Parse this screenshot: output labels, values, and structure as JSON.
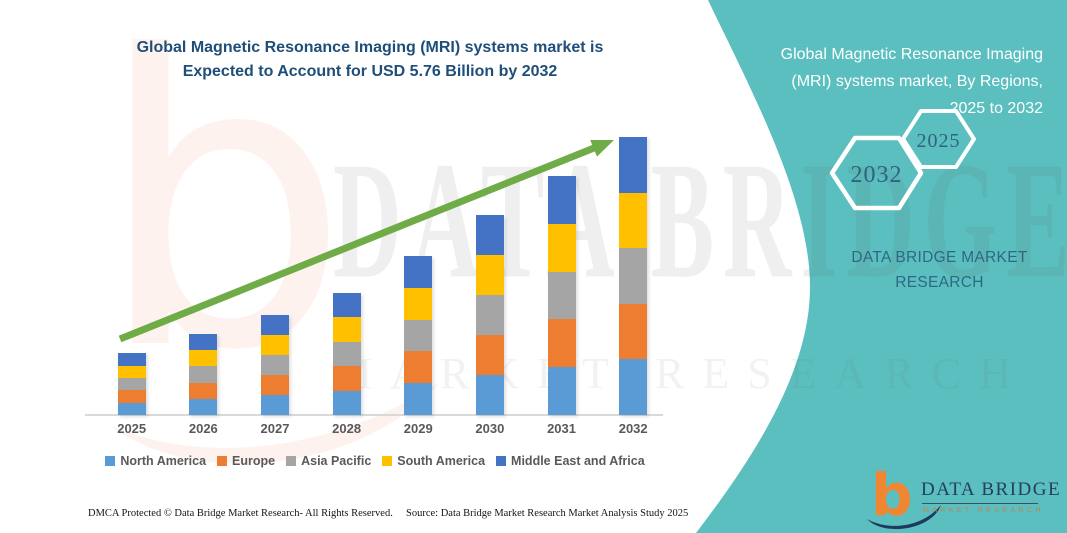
{
  "title": {
    "line1": "Global  Magnetic Resonance Imaging (MRI) systems market is",
    "line2": "Expected to Account for USD 5.76 Billion by 2032"
  },
  "chart_data": {
    "type": "bar",
    "stacked": true,
    "title": "Global Magnetic Resonance Imaging (MRI) systems market, 2025 to 2032",
    "unit": "USD Billion",
    "highlight_value": "USD 5.76 Billion by 2032",
    "categories": [
      "2025",
      "2026",
      "2027",
      "2028",
      "2029",
      "2030",
      "2031",
      "2032"
    ],
    "totals": [
      1.28,
      1.68,
      2.07,
      2.53,
      3.29,
      4.14,
      4.95,
      5.76
    ],
    "series": [
      {
        "name": "North America",
        "color": "#5B9BD5",
        "values": [
          0.256,
          0.336,
          0.414,
          0.506,
          0.658,
          0.828,
          0.99,
          1.152
        ]
      },
      {
        "name": "Europe",
        "color": "#ED7D31",
        "values": [
          0.256,
          0.336,
          0.414,
          0.506,
          0.658,
          0.828,
          0.99,
          1.152
        ]
      },
      {
        "name": "Asia Pacific",
        "color": "#A5A5A5",
        "values": [
          0.256,
          0.336,
          0.414,
          0.506,
          0.658,
          0.828,
          0.99,
          1.152
        ]
      },
      {
        "name": "South America",
        "color": "#FFC000",
        "values": [
          0.256,
          0.336,
          0.414,
          0.506,
          0.658,
          0.828,
          0.99,
          1.152
        ]
      },
      {
        "name": "Middle East and Africa",
        "color": "#4472C4",
        "values": [
          0.256,
          0.336,
          0.414,
          0.506,
          0.658,
          0.828,
          0.99,
          1.152
        ]
      }
    ],
    "legend_position": "bottom",
    "value_axis": "hidden",
    "gridlines": false,
    "annotation": "upward green trend arrow"
  },
  "side_panel": {
    "title_lines": [
      "Global  Magnetic Resonance Imaging",
      "(MRI) systems market, By Regions,",
      "2025 to 2032"
    ],
    "hexagon_back": "2032",
    "hexagon_front": "2025",
    "brand_text": "DATA BRIDGE MARKET RESEARCH"
  },
  "logo": {
    "glyph": "b",
    "name": "DATA BRIDGE",
    "tagline": "MARKET RESEARCH"
  },
  "watermark": {
    "glyph": "b",
    "line1": "DATA BRIDGE",
    "line2": "MARKET RESEARCH"
  },
  "footer": {
    "left": "DMCA Protected © Data Bridge Market Research-  All Rights Reserved.",
    "right": "Source: Data Bridge Market Research  Market Analysis Study 2025"
  },
  "colors": {
    "panel_teal": "#5BBFBF",
    "title_blue": "#1F4E79",
    "arrow_green": "#6FAC47",
    "axis_text": "#595959",
    "hexagon_text": "#2D6480",
    "brand_text": "#2E6984",
    "logo_navy": "#1F3A5F",
    "logo_orange": "#F08632"
  }
}
